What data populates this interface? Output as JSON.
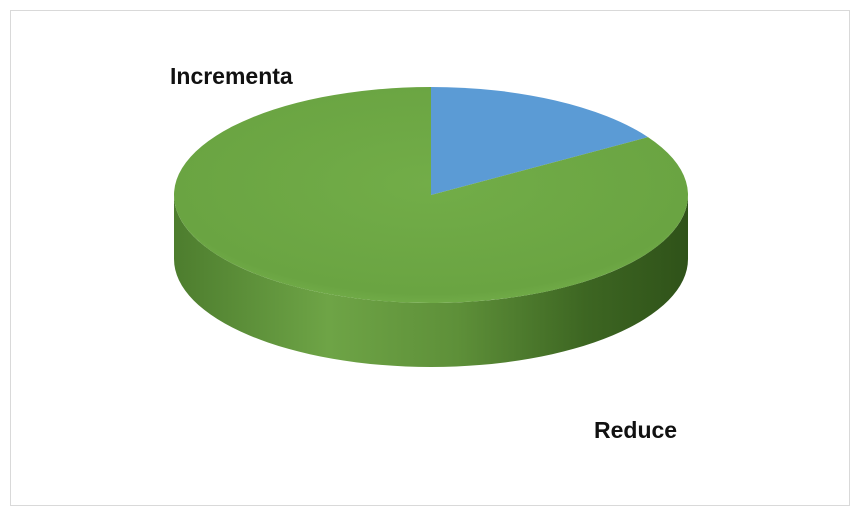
{
  "chart_data": {
    "type": "pie",
    "style": "3d",
    "categories": [
      "Incrementa",
      "Reduce"
    ],
    "values": [
      16,
      84
    ],
    "colors": [
      "#5b9bd5",
      "#70ad47"
    ],
    "legend": "none",
    "data_labels": [
      "Incrementa",
      "Reduce"
    ]
  }
}
